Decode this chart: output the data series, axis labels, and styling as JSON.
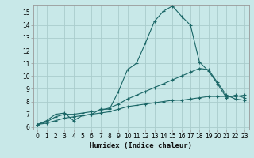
{
  "xlabel": "Humidex (Indice chaleur)",
  "bg_color": "#c8e8e8",
  "grid_color": "#aacccc",
  "line_color": "#1a6666",
  "x_ticks": [
    0,
    1,
    2,
    3,
    4,
    5,
    6,
    7,
    8,
    9,
    10,
    11,
    12,
    13,
    14,
    15,
    16,
    17,
    18,
    19,
    20,
    21,
    22,
    23
  ],
  "y_ticks": [
    6,
    7,
    8,
    9,
    10,
    11,
    12,
    13,
    14,
    15
  ],
  "ylim": [
    5.8,
    15.6
  ],
  "xlim": [
    -0.5,
    23.5
  ],
  "main_x": [
    0,
    1,
    2,
    3,
    4,
    5,
    6,
    7,
    8,
    9,
    10,
    11,
    12,
    13,
    14,
    15,
    16,
    17,
    18,
    19,
    20,
    21,
    22,
    23
  ],
  "main_y": [
    6.2,
    6.5,
    7.0,
    7.1,
    6.5,
    6.9,
    7.0,
    7.4,
    7.4,
    8.8,
    10.5,
    11.0,
    12.6,
    14.3,
    15.1,
    15.5,
    14.7,
    14.0,
    11.1,
    10.4,
    9.4,
    8.3,
    8.5,
    8.3
  ],
  "line2_x": [
    0,
    1,
    2,
    3,
    4,
    5,
    6,
    7,
    8,
    9,
    10,
    11,
    12,
    13,
    14,
    15,
    16,
    17,
    18,
    19,
    20,
    21,
    22,
    23
  ],
  "line2_y": [
    6.2,
    6.4,
    6.8,
    7.0,
    7.0,
    7.1,
    7.2,
    7.3,
    7.5,
    7.8,
    8.2,
    8.5,
    8.8,
    9.1,
    9.4,
    9.7,
    10.0,
    10.3,
    10.6,
    10.5,
    9.5,
    8.5,
    8.2,
    8.1
  ],
  "line3_x": [
    0,
    1,
    2,
    3,
    4,
    5,
    6,
    7,
    8,
    9,
    10,
    11,
    12,
    13,
    14,
    15,
    16,
    17,
    18,
    19,
    20,
    21,
    22,
    23
  ],
  "line3_y": [
    6.2,
    6.3,
    6.5,
    6.7,
    6.8,
    6.9,
    7.0,
    7.1,
    7.2,
    7.4,
    7.6,
    7.7,
    7.8,
    7.9,
    8.0,
    8.1,
    8.1,
    8.2,
    8.3,
    8.4,
    8.4,
    8.4,
    8.4,
    8.5
  ],
  "tick_fontsize": 5.5,
  "xlabel_fontsize": 6.5
}
